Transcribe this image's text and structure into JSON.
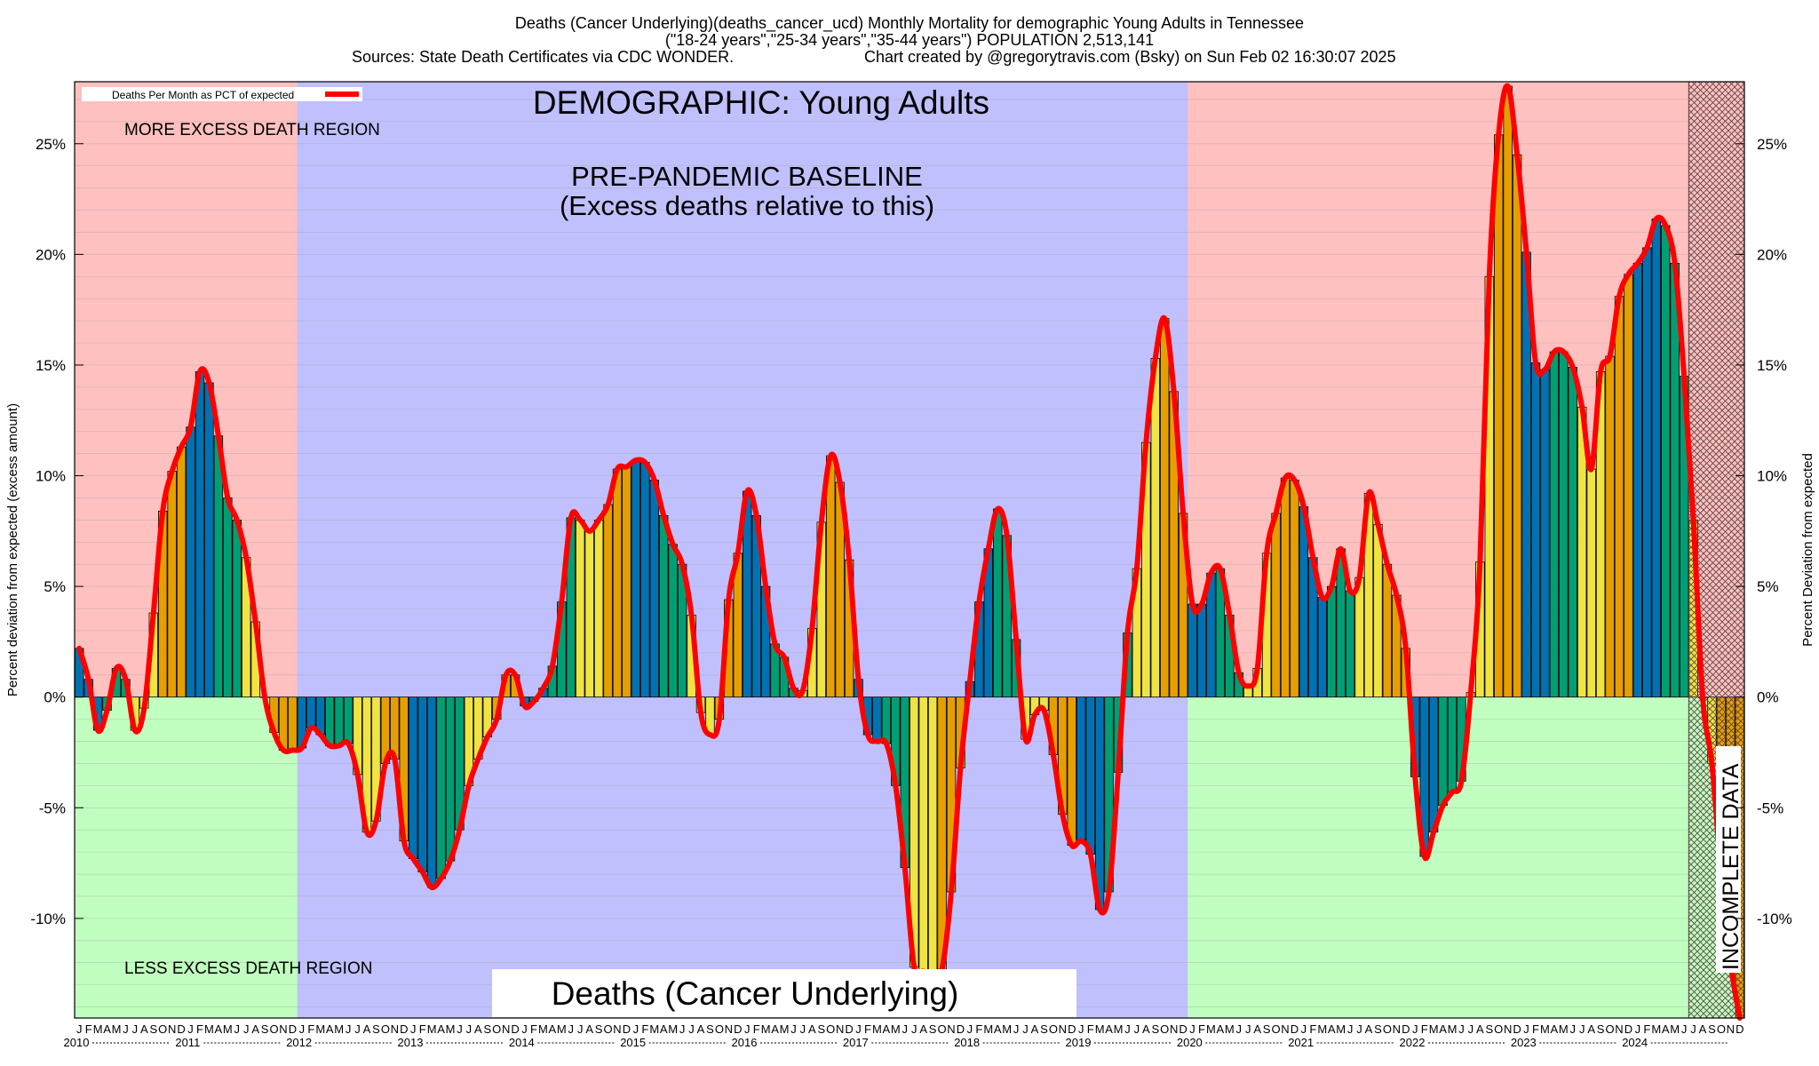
{
  "header": {
    "line1": "Deaths (Cancer Underlying)(deaths_cancer_ucd) Monthly Mortality for demographic Young Adults in Tennessee",
    "line2": "(\"18-24 years\",\"25-34 years\",\"35-44 years\") POPULATION 2,513,141",
    "line3_left": "Sources: State Death Certificates via CDC WONDER.",
    "line3_right": "Chart created by @gregorytravis.com (Bsky) on Sun Feb 02 16:30:07 2025"
  },
  "chart_data": {
    "type": "bar",
    "title": "DEMOGRAPHIC: Young Adults",
    "footer_label": "Deaths (Cancer Underlying)",
    "legend": {
      "label": "Deaths Per Month as PCT of expected",
      "color": "#ff0000",
      "position": "top-left"
    },
    "ylabel_left": "Percent deviation from expected (excess amount)",
    "ylabel_right": "Percent Deviation from expected",
    "ylim": [
      -14.5,
      27.8
    ],
    "y_ticks": [
      -10,
      -5,
      0,
      5,
      10,
      15,
      20,
      25
    ],
    "y_tick_labels": [
      "-10%",
      "-5%",
      "0%",
      "5%",
      "10%",
      "15%",
      "20%",
      "25%"
    ],
    "grid": "horizontal minor lines",
    "x_start": "2010-01",
    "x_end": "2024-12",
    "month_letters": [
      "J",
      "F",
      "M",
      "A",
      "M",
      "J",
      "J",
      "A",
      "S",
      "O",
      "N",
      "D"
    ],
    "years": [
      "2010",
      "2011",
      "2012",
      "2013",
      "2014",
      "2015",
      "2016",
      "2017",
      "2018",
      "2019",
      "2020",
      "2021",
      "2022",
      "2023",
      "2024"
    ],
    "regions": {
      "upper_label": "MORE EXCESS DEATH REGION",
      "lower_label": "LESS EXCESS DEATH REGION",
      "baseline_label_1": "PRE-PANDEMIC BASELINE",
      "baseline_label_2": "(Excess deaths relative to this)",
      "baseline_start": "2012-01",
      "baseline_end": "2019-12",
      "incomplete_label": "INCOMPLETE DATA",
      "incomplete_start": "2024-07",
      "colors": {
        "upper": "#ffc0c0",
        "lower": "#c0ffc0",
        "baseline": "#c0c0ff"
      }
    },
    "bar_colors": [
      "#0072b2",
      "#009e73",
      "#f0e442",
      "#e69f00"
    ],
    "line_color": "#ff0000",
    "values": [
      2.2,
      0.8,
      -1.5,
      -0.6,
      1.3,
      0.8,
      -1.5,
      -0.5,
      3.8,
      8.4,
      10.2,
      11.3,
      12.2,
      14.7,
      14.2,
      11.8,
      9.0,
      8.0,
      6.3,
      3.4,
      0.0,
      -1.6,
      -2.4,
      -2.4,
      -2.3,
      -1.4,
      -1.7,
      -2.2,
      -2.2,
      -2.1,
      -3.5,
      -6.1,
      -5.6,
      -3.0,
      -2.8,
      -6.5,
      -7.3,
      -7.9,
      -8.6,
      -8.2,
      -7.4,
      -6.0,
      -4.0,
      -2.8,
      -1.8,
      -1.0,
      1.0,
      1.0,
      -0.4,
      -0.2,
      0.4,
      1.4,
      4.3,
      8.1,
      8.0,
      7.5,
      8.0,
      8.7,
      10.3,
      10.4,
      10.7,
      10.6,
      9.8,
      8.2,
      6.9,
      6.0,
      3.7,
      -0.7,
      -1.7,
      -1.0,
      4.4,
      6.5,
      9.3,
      8.2,
      5.0,
      2.4,
      1.8,
      0.4,
      0.3,
      3.1,
      7.9,
      10.9,
      9.7,
      6.2,
      0.8,
      -1.7,
      -2.0,
      -2.1,
      -4.0,
      -7.7,
      -12.2,
      -12.4,
      -12.8,
      -12.3,
      -8.8,
      -3.2,
      0.7,
      4.3,
      6.7,
      8.5,
      7.3,
      2.6,
      -1.9,
      -0.8,
      -0.6,
      -2.6,
      -5.3,
      -6.7,
      -6.5,
      -7.1,
      -9.6,
      -8.8,
      -3.4,
      2.9,
      5.8,
      11.5,
      15.3,
      17.1,
      13.8,
      8.3,
      4.2,
      4.2,
      5.6,
      5.8,
      3.7,
      1.1,
      0.5,
      1.3,
      6.5,
      8.3,
      9.9,
      9.8,
      8.6,
      6.3,
      4.5,
      5.0,
      6.7,
      4.8,
      5.4,
      9.2,
      7.8,
      6.0,
      4.6,
      2.2,
      -3.6,
      -7.2,
      -6.1,
      -4.9,
      -4.3,
      -3.8,
      0.2,
      6.1,
      19.0,
      25.4,
      27.6,
      24.5,
      20.1,
      15.1,
      14.8,
      15.6,
      15.6,
      14.9,
      13.1,
      10.3,
      14.7,
      15.4,
      18.1,
      19.1,
      19.6,
      20.3,
      21.6,
      21.3,
      19.6,
      14.5,
      8.0,
      0.0,
      -3.0,
      -8.0,
      -12.0,
      -14.5
    ]
  }
}
